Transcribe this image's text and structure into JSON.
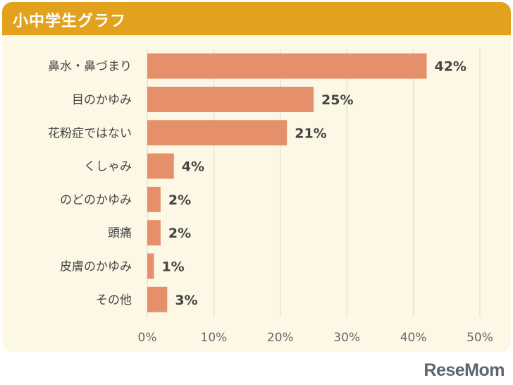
{
  "header": {
    "title": "小中学生グラフ"
  },
  "logo": {
    "text": "ReseMom"
  },
  "colors": {
    "header": "#e3a21d",
    "panel": "#fdf8e6",
    "bar": "#e5906a",
    "grid": "#e8e2d0",
    "text": "#444444"
  },
  "chart_data": {
    "type": "bar",
    "orientation": "horizontal",
    "categories": [
      "鼻水・鼻づまり",
      "目のかゆみ",
      "花粉症ではない",
      "くしゃみ",
      "のどのかゆみ",
      "頭痛",
      "皮膚のかゆみ",
      "その他"
    ],
    "values": [
      42,
      25,
      21,
      4,
      2,
      2,
      1,
      3
    ],
    "value_labels": [
      "42%",
      "25%",
      "21%",
      "4%",
      "2%",
      "2%",
      "1%",
      "3%"
    ],
    "xlim": [
      0,
      50
    ],
    "xticks": [
      "0%",
      "10%",
      "20%",
      "30%",
      "40%",
      "50%"
    ],
    "grid": "vertical"
  }
}
